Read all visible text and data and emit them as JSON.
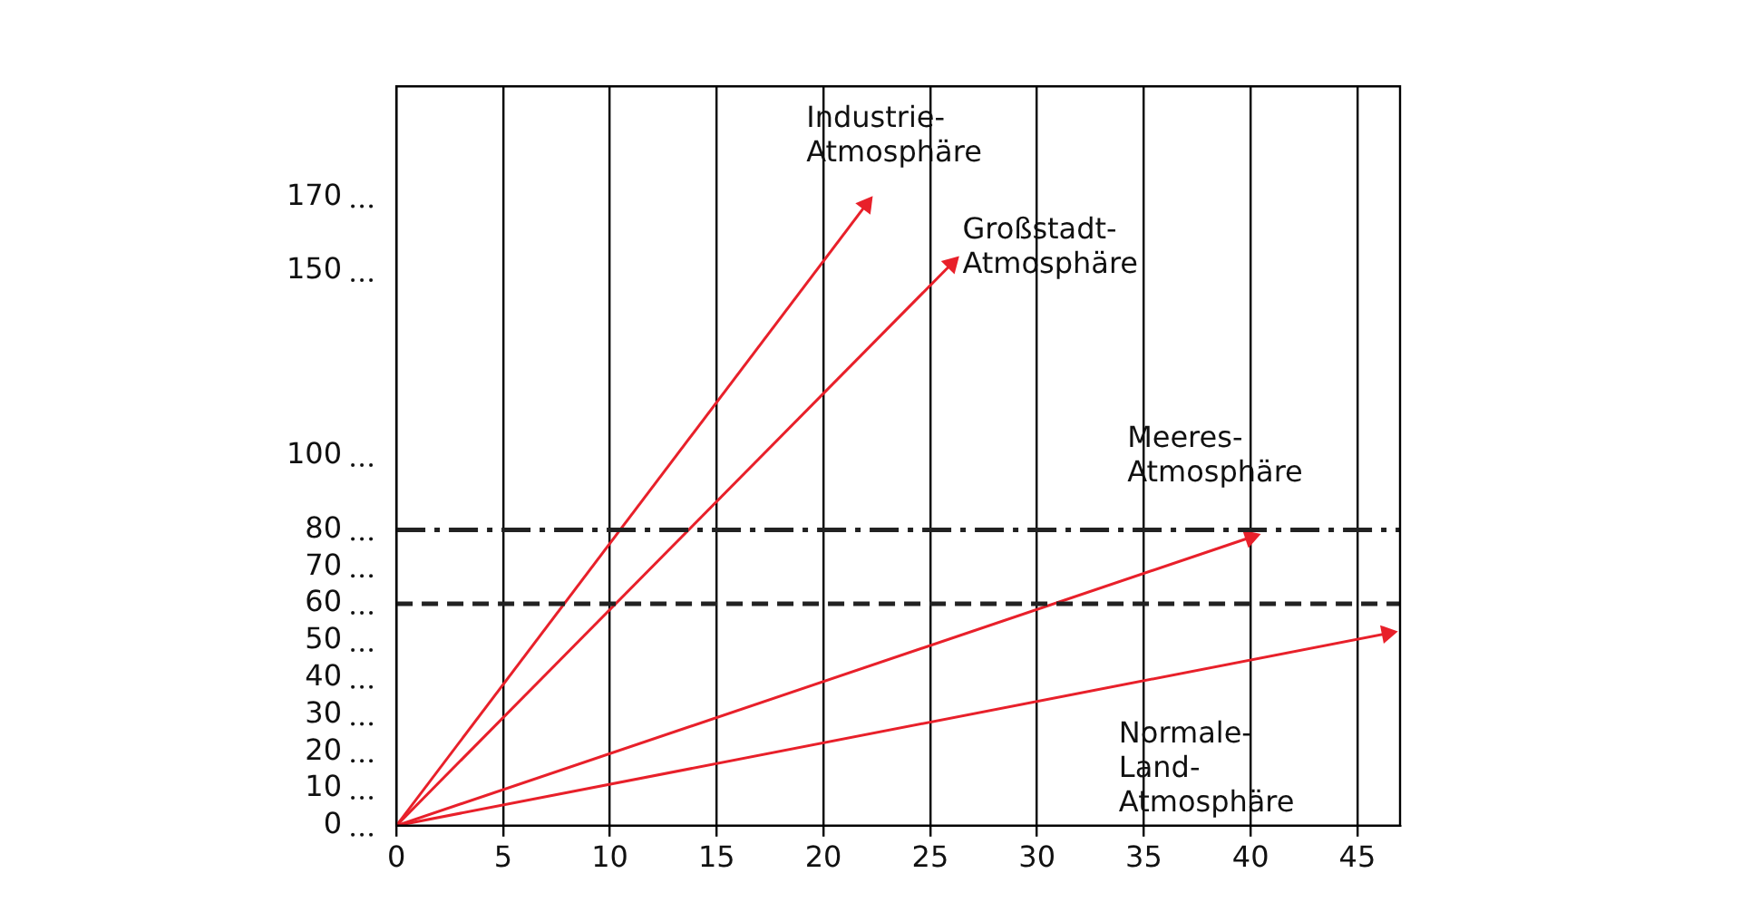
{
  "chart_data": {
    "type": "line",
    "series": [
      {
        "name": "Industrie-\nAtmosphäre",
        "color": "#e8202a",
        "x": [
          0,
          22
        ],
        "values": [
          0,
          168
        ]
      },
      {
        "name": "Großstadt-\nAtmosphäre",
        "color": "#e8202a",
        "x": [
          0,
          26
        ],
        "values": [
          0,
          152
        ]
      },
      {
        "name": "Meeres-\nAtmosphäre",
        "color": "#e8202a",
        "x": [
          0,
          40
        ],
        "values": [
          0,
          78
        ]
      },
      {
        "name": "Normale-\nLand-\nAtmosphäre",
        "color": "#e8202a",
        "x": [
          0,
          46.4
        ],
        "values": [
          0,
          52
        ]
      }
    ],
    "xlim": [
      0,
      47
    ],
    "xticks": [
      0,
      5,
      10,
      15,
      20,
      25,
      30,
      35,
      40,
      45
    ],
    "ylim": [
      0,
      200
    ],
    "yticks": [
      0,
      10,
      20,
      30,
      40,
      50,
      60,
      70,
      80,
      100,
      150,
      170
    ],
    "grid": "x",
    "line_style": "solid",
    "ref_lines": [
      {
        "axis": "y",
        "value": 80,
        "color": "#222222",
        "line_style": "dashdot"
      },
      {
        "axis": "y",
        "value": 60,
        "color": "#222222",
        "line_style": "dashed"
      }
    ]
  }
}
